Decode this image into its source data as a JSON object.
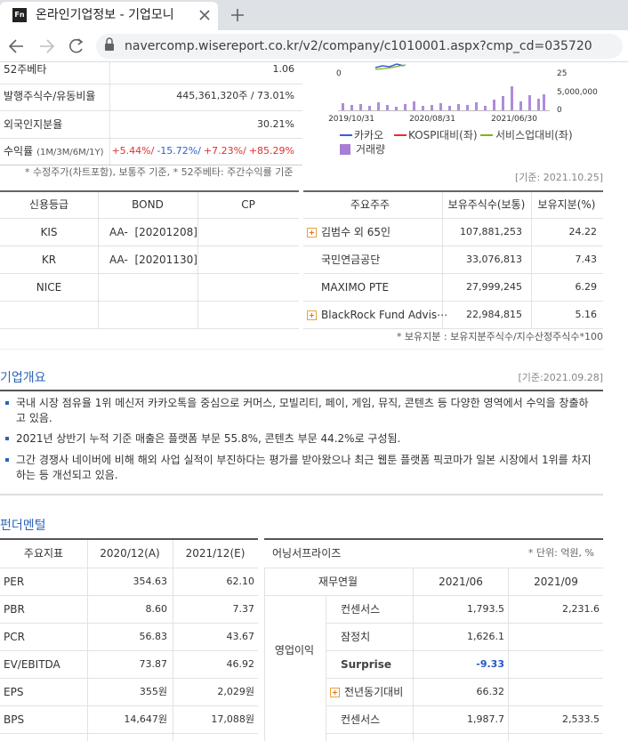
{
  "browser": {
    "tab_icon": "Fn",
    "tab_title": "온라인기업정보 - 기업모니",
    "url": "navercomp.wisereport.co.kr/v2/company/c1010001.aspx?cmp_cd=035720"
  },
  "summary": {
    "rows": [
      [
        "52주베타",
        "1.06"
      ],
      [
        "발행주식수/유동비율",
        "445,361,320주 / 73.01%"
      ],
      [
        "외국인지분율",
        "30.21%"
      ]
    ],
    "returns_label": "수익률",
    "returns_period": "(1M/3M/6M/1Y)",
    "returns": [
      "+5.44%/",
      "-15.72%/",
      "+7.23%/",
      "+85.29%"
    ],
    "note": "* 수정주가(차트포함), 보통주 기준, * 52주베타: 주간수익률 기준"
  },
  "price_chart": {
    "left_ticks": [
      "0"
    ],
    "right_ticks": [
      "25",
      "5,000,000",
      "0"
    ],
    "x_labels": [
      "2019/10/31",
      "2020/08/31",
      "2021/06/30"
    ],
    "legend": [
      "카카오",
      "KOSPI대비(좌)",
      "서비스업대비(좌)",
      "거래량"
    ]
  },
  "base_date": "[기준: 2021.10.25]",
  "credit": {
    "headers": [
      "신용등급",
      "BOND",
      "CP"
    ],
    "rows": [
      [
        "KIS",
        "AA-  [20201208]"
      ],
      [
        "KR",
        "AA-  [20201130]"
      ],
      [
        "NICE"
      ]
    ]
  },
  "shareholders": {
    "headers": [
      "주요주주",
      "보유주식수(보통)",
      "보유지분(%)"
    ],
    "rows": [
      [
        "김범수 외 65인",
        "107,881,253",
        "24.22"
      ],
      [
        "국민연금공단",
        "33,076,813",
        "7.43"
      ],
      [
        "MAXIMO PTE",
        "27,999,245",
        "6.29"
      ],
      [
        "BlackRock Fund Advis⋯",
        "22,984,815",
        "5.16"
      ]
    ],
    "note": "* 보유지분 : 보유지분주식수/지수산정주식수*100"
  },
  "overview": {
    "title": "기업개요",
    "base_date": "[기준:2021.09.28]",
    "bullets": [
      "국내 시장 점유율 1위 메신저 카카오톡을 중심으로 커머스, 모빌리티, 페이, 게임, 뮤직, 콘텐츠 등 다양한 영역에서 수익을 창출하고 있음.",
      "2021년 상반기 누적 기준 매출은 플랫폼 부문 55.8%, 콘텐츠 부문 44.2%로 구성됨.",
      "그간 경쟁사 네이버에 비해 해외 사업 실적이 부진하다는 평가를 받아왔으나 최근 웹툰 플랫폼 픽코마가 일본 시장에서 1위를 차지하는 등 개선되고 있음."
    ]
  },
  "fundamentals": {
    "title": "펀더멘털",
    "indicators": {
      "headers": [
        "주요지표",
        "2020/12(A)",
        "2021/12(E)"
      ],
      "rows": [
        [
          "PER",
          "354.63",
          "62.10"
        ],
        [
          "PBR",
          "8.60",
          "7.37"
        ],
        [
          "PCR",
          "56.83",
          "43.67"
        ],
        [
          "EV/EBITDA",
          "73.87",
          "46.92"
        ],
        [
          "EPS",
          "355원",
          "2,029원"
        ],
        [
          "BPS",
          "14,647원",
          "17,088원"
        ]
      ]
    },
    "earnings": {
      "title": "어닝서프라이즈",
      "unit": "* 단위: 억원, %",
      "headers": [
        "재무연월",
        "2021/06",
        "2021/09"
      ],
      "group": "영업이익",
      "rows": [
        [
          "컨센서스",
          "1,793.5",
          "2,231.6"
        ],
        [
          "잠정치",
          "1,626.1"
        ],
        [
          "Surprise",
          "-9.33"
        ],
        [
          "전년동기대비",
          "66.32"
        ],
        [
          "컨센서스",
          "1,987.7",
          "2,533.5"
        ]
      ]
    }
  }
}
